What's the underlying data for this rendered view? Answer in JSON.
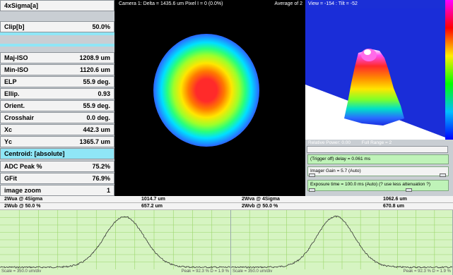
{
  "params": [
    {
      "label": "4xSigma[a]",
      "value": ""
    },
    {
      "label": "Clip[b]",
      "value": "50.0%"
    },
    {
      "label": "Maj-ISO",
      "value": "1208.9 um"
    },
    {
      "label": "Min-ISO",
      "value": "1120.6 um"
    },
    {
      "label": "ELP",
      "value": "55.9 deg."
    },
    {
      "label": "Ellip.",
      "value": "0.93"
    },
    {
      "label": "Orient.",
      "value": "55.9 deg."
    },
    {
      "label": "Crosshair",
      "value": "0.0 deg."
    },
    {
      "label": "Xc",
      "value": "442.3 um"
    },
    {
      "label": "Yc",
      "value": "1365.7 um"
    },
    {
      "label": "Centroid: [absolute]",
      "value": ""
    },
    {
      "label": "ADC Peak %",
      "value": "75.2%"
    },
    {
      "label": "GFit",
      "value": "76.9%"
    },
    {
      "label": "image zoom",
      "value": "1"
    }
  ],
  "beam_view": {
    "title": "Camera 1: Delta = 1435.6 um Pixel I = 0 (0.0%)",
    "average": "Average of 2"
  },
  "view3d": {
    "label": "View = -154 : Tilt = -52"
  },
  "controls": {
    "relative_power": "Relative Power: 0.00",
    "full_range": "Full Range = 2",
    "trigger": "(Trigger off) delay = 0.061 ms",
    "gain": "Imager Gain = 5.7 (Auto)",
    "exposure": "Exposure time = 100.0 ms (Auto)  (? use less attenuation ?)"
  },
  "stats": {
    "left": [
      {
        "k": "2Wua @ 4Sigma",
        "v": "1014.7 um"
      },
      {
        "k": "2Wub @ 50.0 %",
        "v": "657.2 um"
      }
    ],
    "right": [
      {
        "k": "2Wva @ 4Sigma",
        "v": "1062.6 um"
      },
      {
        "k": "2Wvb @ 50.0 %",
        "v": "670.8 um"
      }
    ]
  },
  "profiles": {
    "left": {
      "scale": "Scale = 350.0 um/div",
      "peak": "Peak = 92.3 %  D = 1.9 %"
    },
    "right": {
      "scale": "Scale = 350.0 um/div",
      "peak": "Peak = 92.3 %  D = 1.9 %"
    }
  },
  "colors": {
    "panel_bg": "#c9ced3",
    "row_bg": "#f3f3f3",
    "accent_cyan": "#8fe6f6",
    "profile_bg": "#d6f4c2",
    "profile_grid": "#9ad66a"
  }
}
